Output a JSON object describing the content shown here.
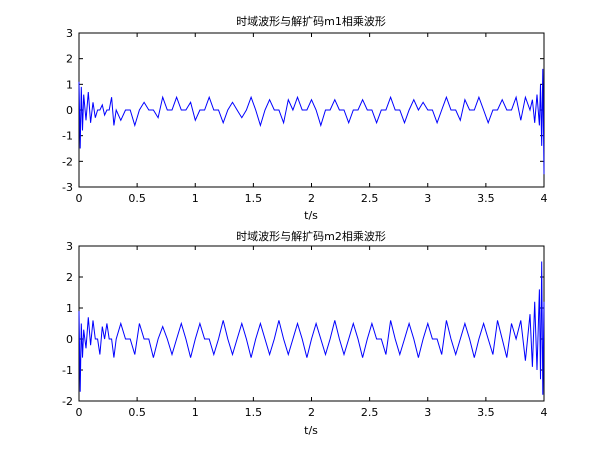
{
  "chart_data": [
    {
      "type": "line",
      "title": "时域波形与解扩码m1相乘波形",
      "xlabel": "t/s",
      "ylabel": "",
      "xlim": [
        0,
        4
      ],
      "ylim": [
        -3,
        3
      ],
      "xticks": [
        0,
        0.5,
        1,
        1.5,
        2,
        2.5,
        3,
        3.5,
        4
      ],
      "yticks": [
        -3,
        -2,
        -1,
        0,
        1,
        2,
        3
      ],
      "xtick_labels": [
        "0",
        "0.5",
        "1",
        "1.5",
        "2",
        "2.5",
        "3",
        "3.5",
        "4"
      ],
      "ytick_labels": [
        "-3",
        "-2",
        "-1",
        "0",
        "1",
        "2",
        "3"
      ],
      "grid": false,
      "series": [
        {
          "color": "#0000ff",
          "x": [
            0.0,
            0.01,
            0.02,
            0.03,
            0.04,
            0.06,
            0.08,
            0.1,
            0.12,
            0.14,
            0.16,
            0.18,
            0.2,
            0.22,
            0.24,
            0.26,
            0.28,
            0.3,
            0.32,
            0.36,
            0.4,
            0.44,
            0.48,
            0.52,
            0.56,
            0.6,
            0.64,
            0.68,
            0.72,
            0.76,
            0.8,
            0.84,
            0.88,
            0.92,
            0.96,
            1.0,
            1.04,
            1.08,
            1.12,
            1.16,
            1.2,
            1.24,
            1.28,
            1.32,
            1.36,
            1.4,
            1.44,
            1.48,
            1.52,
            1.56,
            1.6,
            1.64,
            1.68,
            1.72,
            1.76,
            1.8,
            1.84,
            1.88,
            1.92,
            1.96,
            2.0,
            2.04,
            2.08,
            2.12,
            2.16,
            2.2,
            2.24,
            2.28,
            2.32,
            2.36,
            2.4,
            2.44,
            2.48,
            2.52,
            2.56,
            2.6,
            2.64,
            2.68,
            2.72,
            2.76,
            2.8,
            2.84,
            2.88,
            2.92,
            2.96,
            3.0,
            3.04,
            3.08,
            3.12,
            3.16,
            3.2,
            3.24,
            3.28,
            3.32,
            3.36,
            3.4,
            3.44,
            3.48,
            3.52,
            3.56,
            3.6,
            3.64,
            3.68,
            3.72,
            3.76,
            3.8,
            3.84,
            3.88,
            3.9,
            3.92,
            3.94,
            3.96,
            3.97,
            3.98,
            3.99,
            4.0
          ],
          "values": [
            1.1,
            -1.5,
            0.9,
            -0.8,
            0.6,
            -0.4,
            0.7,
            -0.5,
            0.3,
            -0.3,
            0.0,
            0.0,
            0.2,
            -0.2,
            0.0,
            0.0,
            0.5,
            -0.6,
            0.0,
            -0.4,
            0.0,
            0.0,
            -0.6,
            0.0,
            0.3,
            0.0,
            0.0,
            -0.3,
            0.5,
            0.0,
            0.0,
            0.5,
            0.0,
            0.0,
            0.3,
            -0.4,
            0.0,
            0.0,
            0.5,
            0.0,
            0.0,
            -0.5,
            0.0,
            0.3,
            0.0,
            -0.3,
            0.0,
            0.5,
            0.0,
            -0.6,
            0.0,
            0.4,
            0.0,
            0.0,
            -0.5,
            0.4,
            0.0,
            0.5,
            0.0,
            0.0,
            0.4,
            0.0,
            -0.6,
            0.0,
            0.0,
            0.4,
            0.0,
            0.0,
            -0.5,
            0.0,
            0.0,
            0.4,
            0.0,
            0.0,
            -0.5,
            0.0,
            0.0,
            0.5,
            0.0,
            0.0,
            -0.5,
            0.0,
            0.4,
            0.0,
            0.3,
            0.0,
            0.0,
            -0.5,
            0.0,
            0.5,
            0.0,
            0.0,
            -0.4,
            0.4,
            0.0,
            0.0,
            0.5,
            0.0,
            -0.5,
            0.0,
            0.0,
            0.4,
            0.0,
            0.0,
            0.5,
            -0.4,
            0.5,
            0.0,
            0.4,
            -0.5,
            0.6,
            -0.6,
            1.0,
            -1.4,
            1.6,
            -2.5
          ]
        }
      ]
    },
    {
      "type": "line",
      "title": "时域波形与解扩码m2相乘波形",
      "xlabel": "t/s",
      "ylabel": "",
      "xlim": [
        0,
        4
      ],
      "ylim": [
        -2,
        3
      ],
      "xticks": [
        0,
        0.5,
        1,
        1.5,
        2,
        2.5,
        3,
        3.5,
        4
      ],
      "yticks": [
        -2,
        -1,
        0,
        1,
        2,
        3
      ],
      "xtick_labels": [
        "0",
        "0.5",
        "1",
        "1.5",
        "2",
        "2.5",
        "3",
        "3.5",
        "4"
      ],
      "ytick_labels": [
        "-2",
        "-1",
        "0",
        "1",
        "2",
        "3"
      ],
      "grid": false,
      "series": [
        {
          "color": "#0000ff",
          "x": [
            0.0,
            0.01,
            0.02,
            0.03,
            0.04,
            0.06,
            0.08,
            0.1,
            0.12,
            0.14,
            0.16,
            0.18,
            0.2,
            0.22,
            0.24,
            0.26,
            0.28,
            0.3,
            0.32,
            0.36,
            0.4,
            0.44,
            0.48,
            0.52,
            0.56,
            0.6,
            0.64,
            0.68,
            0.72,
            0.76,
            0.8,
            0.84,
            0.88,
            0.92,
            0.96,
            1.0,
            1.04,
            1.08,
            1.12,
            1.16,
            1.2,
            1.24,
            1.28,
            1.32,
            1.36,
            1.4,
            1.44,
            1.48,
            1.52,
            1.56,
            1.6,
            1.64,
            1.68,
            1.72,
            1.76,
            1.8,
            1.84,
            1.88,
            1.92,
            1.96,
            2.0,
            2.04,
            2.08,
            2.12,
            2.16,
            2.2,
            2.24,
            2.28,
            2.32,
            2.36,
            2.4,
            2.44,
            2.48,
            2.52,
            2.56,
            2.6,
            2.64,
            2.68,
            2.72,
            2.76,
            2.8,
            2.84,
            2.88,
            2.92,
            2.96,
            3.0,
            3.04,
            3.08,
            3.12,
            3.16,
            3.2,
            3.24,
            3.28,
            3.32,
            3.36,
            3.4,
            3.44,
            3.48,
            3.52,
            3.56,
            3.6,
            3.64,
            3.68,
            3.72,
            3.76,
            3.8,
            3.84,
            3.88,
            3.9,
            3.92,
            3.94,
            3.96,
            3.97,
            3.98,
            3.99,
            4.0
          ],
          "values": [
            0.9,
            -1.7,
            0.5,
            -0.6,
            0.3,
            -0.3,
            0.7,
            -0.2,
            0.6,
            0.0,
            0.0,
            -0.5,
            0.4,
            0.0,
            0.5,
            0.0,
            0.0,
            -0.6,
            0.0,
            0.5,
            0.0,
            0.0,
            -0.5,
            0.5,
            0.0,
            0.0,
            -0.6,
            0.0,
            0.4,
            0.0,
            -0.5,
            0.0,
            0.5,
            0.0,
            -0.6,
            0.0,
            0.5,
            0.0,
            0.0,
            -0.5,
            0.0,
            0.6,
            0.0,
            -0.5,
            0.0,
            0.5,
            0.0,
            -0.6,
            0.0,
            0.5,
            0.0,
            -0.5,
            0.0,
            0.6,
            0.0,
            -0.5,
            0.0,
            0.5,
            0.0,
            -0.6,
            0.0,
            0.5,
            0.0,
            -0.5,
            0.0,
            0.6,
            0.0,
            -0.5,
            0.0,
            0.5,
            0.0,
            -0.6,
            0.0,
            0.5,
            0.0,
            0.0,
            -0.5,
            0.6,
            0.0,
            -0.5,
            0.0,
            0.5,
            0.0,
            -0.6,
            0.0,
            0.5,
            0.0,
            0.0,
            -0.5,
            0.6,
            0.0,
            -0.5,
            0.0,
            0.5,
            0.0,
            -0.6,
            0.0,
            0.5,
            0.0,
            -0.5,
            0.6,
            0.0,
            -0.6,
            0.5,
            0.0,
            0.6,
            -0.7,
            0.8,
            -0.9,
            1.2,
            -1.0,
            1.6,
            -1.3,
            2.5,
            -1.8,
            1.2
          ]
        }
      ]
    }
  ]
}
